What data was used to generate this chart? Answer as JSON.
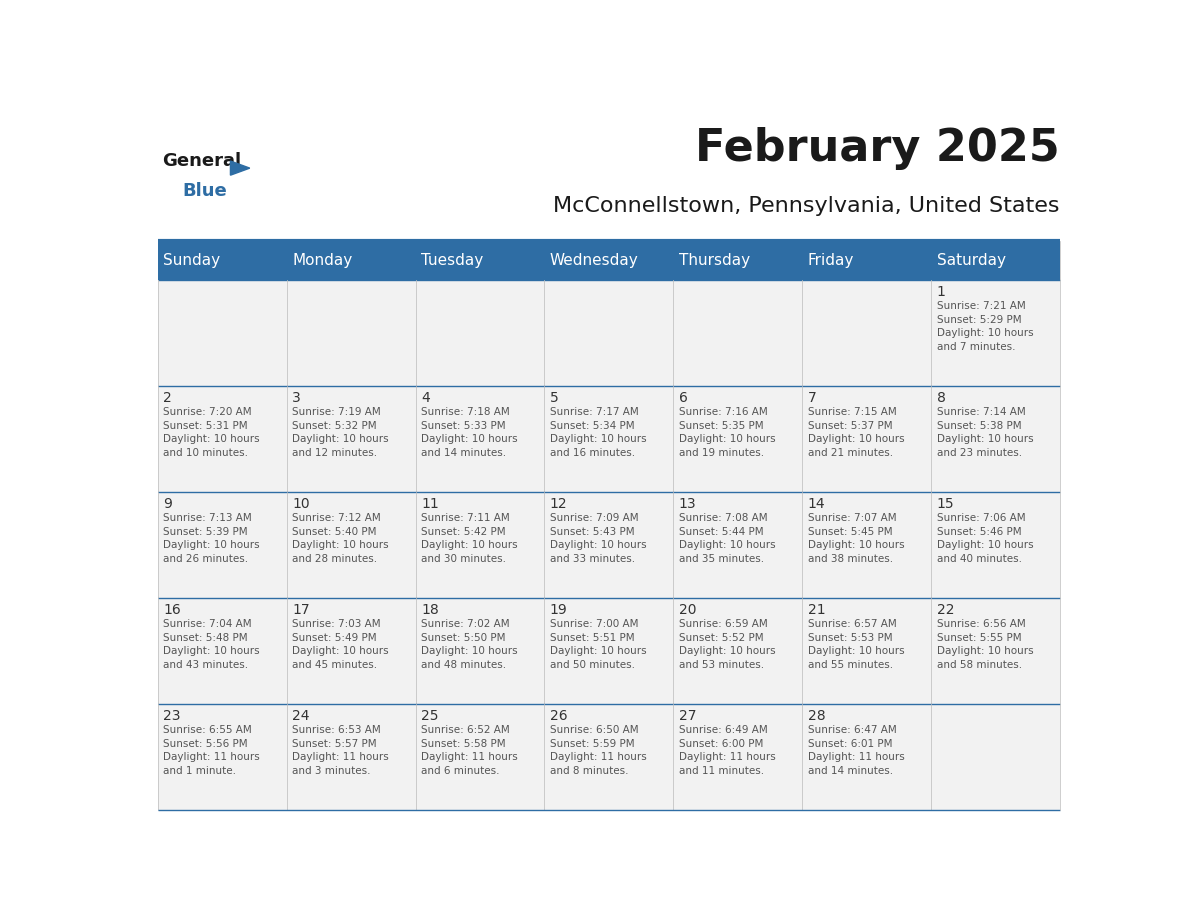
{
  "title": "February 2025",
  "subtitle": "McConnellstown, Pennsylvania, United States",
  "header_bg": "#2E6DA4",
  "header_text": "#FFFFFF",
  "cell_bg": "#F2F2F2",
  "border_color": "#2E6DA4",
  "text_color": "#333333",
  "day_headers": [
    "Sunday",
    "Monday",
    "Tuesday",
    "Wednesday",
    "Thursday",
    "Friday",
    "Saturday"
  ],
  "weeks": [
    [
      {
        "day": "",
        "info": ""
      },
      {
        "day": "",
        "info": ""
      },
      {
        "day": "",
        "info": ""
      },
      {
        "day": "",
        "info": ""
      },
      {
        "day": "",
        "info": ""
      },
      {
        "day": "",
        "info": ""
      },
      {
        "day": "1",
        "info": "Sunrise: 7:21 AM\nSunset: 5:29 PM\nDaylight: 10 hours\nand 7 minutes."
      }
    ],
    [
      {
        "day": "2",
        "info": "Sunrise: 7:20 AM\nSunset: 5:31 PM\nDaylight: 10 hours\nand 10 minutes."
      },
      {
        "day": "3",
        "info": "Sunrise: 7:19 AM\nSunset: 5:32 PM\nDaylight: 10 hours\nand 12 minutes."
      },
      {
        "day": "4",
        "info": "Sunrise: 7:18 AM\nSunset: 5:33 PM\nDaylight: 10 hours\nand 14 minutes."
      },
      {
        "day": "5",
        "info": "Sunrise: 7:17 AM\nSunset: 5:34 PM\nDaylight: 10 hours\nand 16 minutes."
      },
      {
        "day": "6",
        "info": "Sunrise: 7:16 AM\nSunset: 5:35 PM\nDaylight: 10 hours\nand 19 minutes."
      },
      {
        "day": "7",
        "info": "Sunrise: 7:15 AM\nSunset: 5:37 PM\nDaylight: 10 hours\nand 21 minutes."
      },
      {
        "day": "8",
        "info": "Sunrise: 7:14 AM\nSunset: 5:38 PM\nDaylight: 10 hours\nand 23 minutes."
      }
    ],
    [
      {
        "day": "9",
        "info": "Sunrise: 7:13 AM\nSunset: 5:39 PM\nDaylight: 10 hours\nand 26 minutes."
      },
      {
        "day": "10",
        "info": "Sunrise: 7:12 AM\nSunset: 5:40 PM\nDaylight: 10 hours\nand 28 minutes."
      },
      {
        "day": "11",
        "info": "Sunrise: 7:11 AM\nSunset: 5:42 PM\nDaylight: 10 hours\nand 30 minutes."
      },
      {
        "day": "12",
        "info": "Sunrise: 7:09 AM\nSunset: 5:43 PM\nDaylight: 10 hours\nand 33 minutes."
      },
      {
        "day": "13",
        "info": "Sunrise: 7:08 AM\nSunset: 5:44 PM\nDaylight: 10 hours\nand 35 minutes."
      },
      {
        "day": "14",
        "info": "Sunrise: 7:07 AM\nSunset: 5:45 PM\nDaylight: 10 hours\nand 38 minutes."
      },
      {
        "day": "15",
        "info": "Sunrise: 7:06 AM\nSunset: 5:46 PM\nDaylight: 10 hours\nand 40 minutes."
      }
    ],
    [
      {
        "day": "16",
        "info": "Sunrise: 7:04 AM\nSunset: 5:48 PM\nDaylight: 10 hours\nand 43 minutes."
      },
      {
        "day": "17",
        "info": "Sunrise: 7:03 AM\nSunset: 5:49 PM\nDaylight: 10 hours\nand 45 minutes."
      },
      {
        "day": "18",
        "info": "Sunrise: 7:02 AM\nSunset: 5:50 PM\nDaylight: 10 hours\nand 48 minutes."
      },
      {
        "day": "19",
        "info": "Sunrise: 7:00 AM\nSunset: 5:51 PM\nDaylight: 10 hours\nand 50 minutes."
      },
      {
        "day": "20",
        "info": "Sunrise: 6:59 AM\nSunset: 5:52 PM\nDaylight: 10 hours\nand 53 minutes."
      },
      {
        "day": "21",
        "info": "Sunrise: 6:57 AM\nSunset: 5:53 PM\nDaylight: 10 hours\nand 55 minutes."
      },
      {
        "day": "22",
        "info": "Sunrise: 6:56 AM\nSunset: 5:55 PM\nDaylight: 10 hours\nand 58 minutes."
      }
    ],
    [
      {
        "day": "23",
        "info": "Sunrise: 6:55 AM\nSunset: 5:56 PM\nDaylight: 11 hours\nand 1 minute."
      },
      {
        "day": "24",
        "info": "Sunrise: 6:53 AM\nSunset: 5:57 PM\nDaylight: 11 hours\nand 3 minutes."
      },
      {
        "day": "25",
        "info": "Sunrise: 6:52 AM\nSunset: 5:58 PM\nDaylight: 11 hours\nand 6 minutes."
      },
      {
        "day": "26",
        "info": "Sunrise: 6:50 AM\nSunset: 5:59 PM\nDaylight: 11 hours\nand 8 minutes."
      },
      {
        "day": "27",
        "info": "Sunrise: 6:49 AM\nSunset: 6:00 PM\nDaylight: 11 hours\nand 11 minutes."
      },
      {
        "day": "28",
        "info": "Sunrise: 6:47 AM\nSunset: 6:01 PM\nDaylight: 11 hours\nand 14 minutes."
      },
      {
        "day": "",
        "info": ""
      }
    ]
  ],
  "logo_text1": "General",
  "logo_text2": "Blue",
  "logo_triangle_color": "#2E6DA4"
}
